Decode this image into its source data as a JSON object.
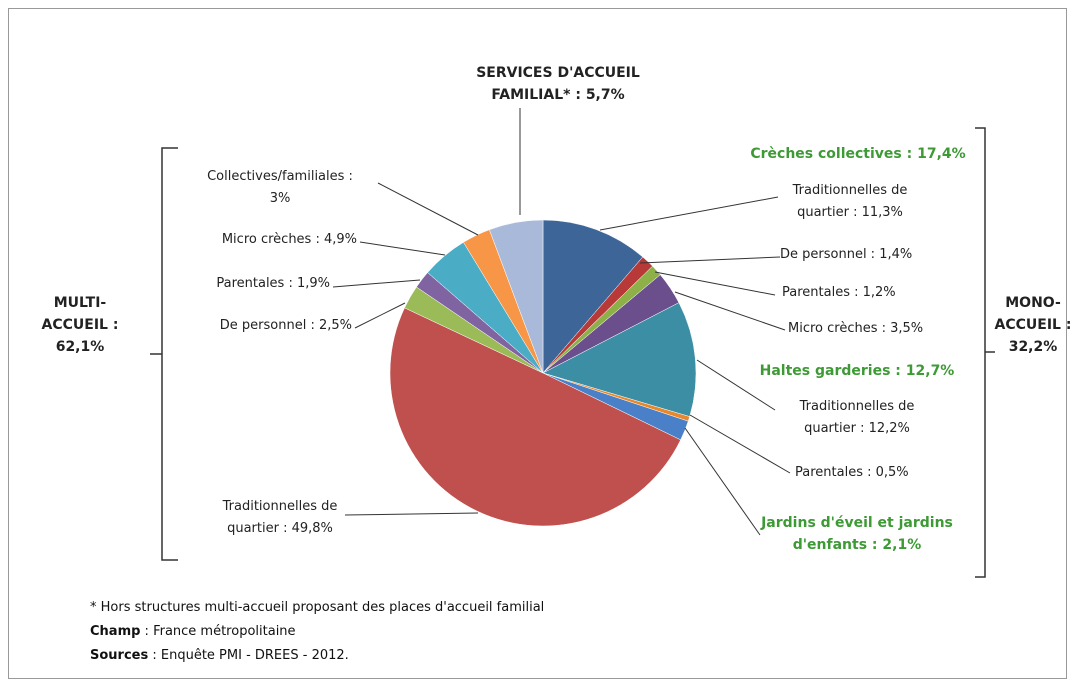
{
  "chart_data": {
    "type": "pie",
    "values": [
      11.3,
      1.4,
      1.2,
      3.5,
      12.2,
      0.5,
      2.1,
      49.8,
      2.5,
      1.9,
      4.9,
      3,
      5.7
    ],
    "value_labels": [
      "Traditionnelles de\nquartier : 11,3%",
      "De personnel : 1,4%",
      "Parentales  : 1,2%",
      "Micro crèches : 3,5%",
      "Traditionnelles de\nquartier : 12,2%",
      "Parentales : 0,5%",
      "Jardins d'éveil et jardins\nd'enfants : 2,1%",
      "Traditionnelles de\nquartier : 49,8%",
      "De personnel : 2,5%",
      "Parentales : 1,9%",
      "Micro crèches : 4,9%",
      "Collectives/familiales :\n3%",
      "SERVICES D'ACCUEIL\nFAMILIAL* : 5,7%"
    ],
    "colors": [
      "#3d6598",
      "#b83a38",
      "#8db048",
      "#6a4f8c",
      "#3b8ea4",
      "#e8882c",
      "#4a80c8",
      "#c0504d",
      "#9bbb59",
      "#8064a2",
      "#4bacc6",
      "#f79646",
      "#a9b9d9"
    ],
    "annotations": [
      "Crèches collectives : 17,4%",
      "Haltes garderies : 12,7%",
      "MULTI-\nACCUEIL :\n62,1%",
      "MONO-\nACCUEIL :\n32,2%"
    ],
    "notes": [
      "* Hors structures multi-accueil proposant des places d'accueil familial",
      "Champ",
      " : France métropolitaine",
      "Sources",
      " : Enquête PMI - DREES - 2012."
    ]
  }
}
